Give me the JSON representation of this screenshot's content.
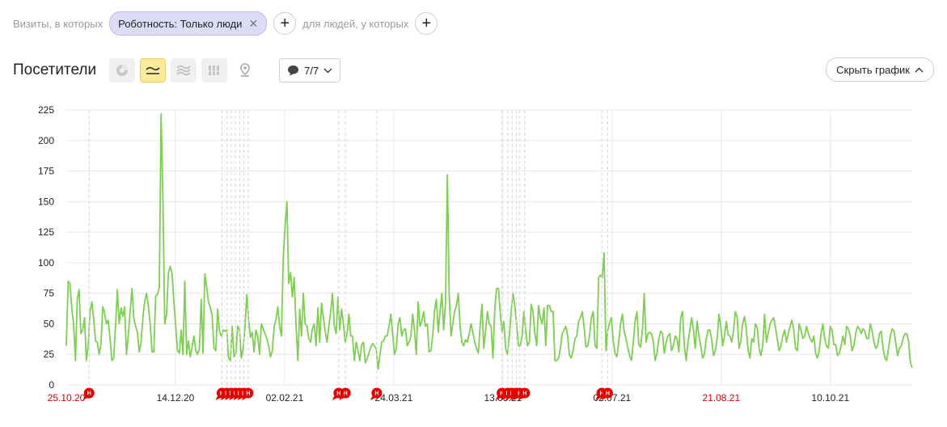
{
  "filters": {
    "visits_prefix": "Визиты, в которых",
    "chip_label": "Роботность: Только люди",
    "people_prefix": "для людей, у которых"
  },
  "toolbar": {
    "title": "Посетители",
    "notes_count": "7/7",
    "hide_chart_label": "Скрыть график",
    "view_icons": [
      "pie-chart-icon",
      "line-chart-icon",
      "area-chart-icon",
      "bar-chart-icon",
      "map-pin-icon"
    ],
    "active_view": "line-chart-icon"
  },
  "colors": {
    "line": "#7ccf4f",
    "grid": "#e8e8e8",
    "weekend_label": "#d80000",
    "note_marker": "#e60000"
  },
  "chart_data": {
    "type": "line",
    "title": "",
    "xlabel": "",
    "ylabel": "",
    "ylim": [
      0,
      225
    ],
    "y_ticks": [
      0,
      25,
      50,
      75,
      100,
      125,
      150,
      175,
      200,
      225
    ],
    "x_tick_labels": [
      {
        "label": "25.10.20",
        "weekend": true
      },
      {
        "label": "14.12.20",
        "weekend": false
      },
      {
        "label": "02.02.21",
        "weekend": false
      },
      {
        "label": "24.03.21",
        "weekend": false
      },
      {
        "label": "13.05.21",
        "weekend": false
      },
      {
        "label": "02.07.21",
        "weekend": false
      },
      {
        "label": "21.08.21",
        "weekend": true
      },
      {
        "label": "10.10.21",
        "weekend": false
      }
    ],
    "grid": true,
    "legend": "none",
    "note_marker_label": "H",
    "series": [
      {
        "values": [
          32,
          85,
          83,
          62,
          50,
          20,
          70,
          78,
          42,
          45,
          55,
          20,
          32,
          60,
          68,
          54,
          36,
          35,
          25,
          33,
          64,
          59,
          50,
          53,
          38,
          20,
          22,
          48,
          78,
          50,
          63,
          56,
          64,
          25,
          40,
          60,
          79,
          55,
          48,
          43,
          27,
          35,
          55,
          68,
          75,
          65,
          50,
          27,
          27,
          73,
          74,
          80,
          222,
          150,
          50,
          58,
          92,
          97,
          91,
          68,
          48,
          28,
          26,
          45,
          25,
          85,
          25,
          36,
          23,
          31,
          40,
          28,
          25,
          30,
          70,
          26,
          91,
          80,
          68,
          63,
          57,
          30,
          28,
          62,
          44,
          40,
          45,
          44,
          45,
          22,
          20,
          48,
          23,
          26,
          48,
          45,
          22,
          30,
          47,
          74,
          53,
          39,
          43,
          27,
          45,
          40,
          25,
          50,
          46,
          42,
          38,
          32,
          23,
          28,
          48,
          53,
          64,
          48,
          40,
          105,
          130,
          150,
          83,
          92,
          72,
          88,
          50,
          20,
          62,
          40,
          75,
          50,
          48,
          38,
          35,
          46,
          50,
          32,
          63,
          35,
          67,
          55,
          44,
          35,
          48,
          60,
          75,
          48,
          42,
          72,
          45,
          62,
          50,
          35,
          42,
          58,
          40,
          40,
          20,
          35,
          28,
          20,
          33,
          35,
          18,
          22,
          26,
          31,
          34,
          32,
          30,
          13,
          24,
          35,
          36,
          40,
          40,
          48,
          58,
          42,
          25,
          30,
          50,
          55,
          40,
          45,
          46,
          32,
          35,
          40,
          58,
          44,
          25,
          68,
          48,
          52,
          60,
          48,
          50,
          27,
          28,
          41,
          61,
          70,
          43,
          60,
          75,
          45,
          68,
          172,
          75,
          40,
          50,
          60,
          65,
          75,
          48,
          35,
          32,
          37,
          35,
          42,
          50,
          43,
          35,
          30,
          26,
          48,
          66,
          30,
          45,
          60,
          50,
          48,
          22,
          62,
          79,
          79,
          60,
          43,
          52,
          30,
          25,
          40,
          60,
          75,
          65,
          50,
          32,
          32,
          40,
          60,
          44,
          32,
          35,
          66,
          60,
          42,
          32,
          65,
          55,
          50,
          63,
          32,
          65,
          65,
          60,
          60,
          20,
          20,
          22,
          30,
          42,
          45,
          48,
          40,
          24,
          22,
          28,
          38,
          40,
          52,
          55,
          60,
          48,
          31,
          32,
          40,
          55,
          60,
          32,
          30,
          88,
          90,
          88,
          108,
          28,
          45,
          51,
          55,
          36,
          26,
          23,
          35,
          50,
          58,
          44,
          38,
          30,
          24,
          20,
          35,
          52,
          60,
          33,
          31,
          45,
          75,
          35,
          42,
          43,
          42,
          35,
          20,
          26,
          38,
          44,
          42,
          26,
          35,
          40,
          42,
          28,
          32,
          40,
          38,
          27,
          55,
          60,
          32,
          20,
          35,
          45,
          55,
          45,
          30,
          52,
          40,
          32,
          22,
          25,
          38,
          45,
          45,
          37,
          24,
          28,
          38,
          58,
          48,
          32,
          40,
          52,
          41,
          40,
          35,
          45,
          60,
          55,
          30,
          36,
          50,
          56,
          45,
          28,
          22,
          38,
          35,
          50,
          47,
          30,
          24,
          32,
          58,
          35,
          42,
          50,
          53,
          55,
          47,
          37,
          28,
          32,
          40,
          45,
          35,
          42,
          48,
          53,
          45,
          30,
          28,
          50,
          45,
          38,
          40,
          48,
          42,
          38,
          35,
          40,
          26,
          22,
          28,
          42,
          50,
          38,
          32,
          30,
          48,
          45,
          33,
          33,
          24,
          26,
          32,
          40,
          33,
          48,
          46,
          40,
          28,
          32,
          42,
          48,
          46,
          42,
          46,
          44,
          38,
          38,
          50,
          44,
          35,
          30,
          32,
          42,
          44,
          30,
          22,
          20,
          30,
          40,
          46,
          44,
          34,
          24,
          30,
          32,
          38,
          42,
          42,
          36,
          18,
          14
        ]
      }
    ]
  }
}
